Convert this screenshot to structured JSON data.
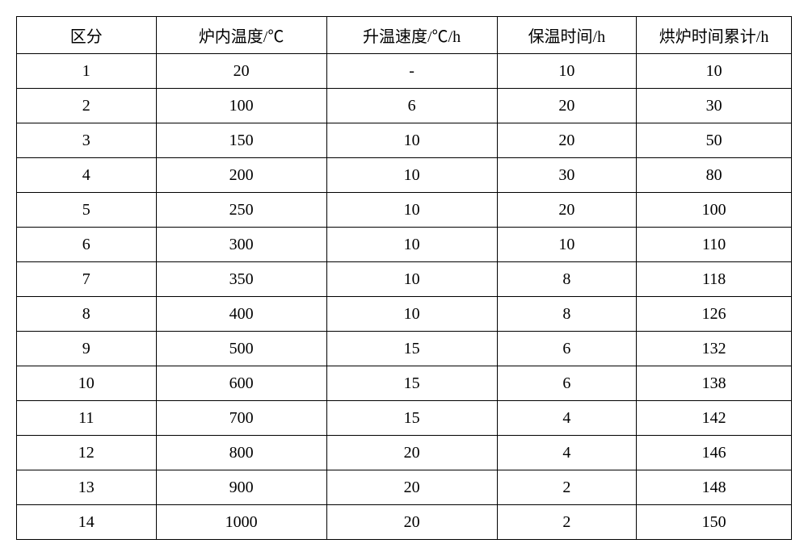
{
  "table": {
    "columns": [
      "区分",
      "炉内温度/℃",
      "升温速度/℃/h",
      "保温时间/h",
      "烘炉时间累计/h"
    ],
    "column_widths": [
      "18%",
      "22%",
      "22%",
      "18%",
      "20%"
    ],
    "rows": [
      [
        "1",
        "20",
        "-",
        "10",
        "10"
      ],
      [
        "2",
        "100",
        "6",
        "20",
        "30"
      ],
      [
        "3",
        "150",
        "10",
        "20",
        "50"
      ],
      [
        "4",
        "200",
        "10",
        "30",
        "80"
      ],
      [
        "5",
        "250",
        "10",
        "20",
        "100"
      ],
      [
        "6",
        "300",
        "10",
        "10",
        "110"
      ],
      [
        "7",
        "350",
        "10",
        "8",
        "118"
      ],
      [
        "8",
        "400",
        "10",
        "8",
        "126"
      ],
      [
        "9",
        "500",
        "15",
        "6",
        "132"
      ],
      [
        "10",
        "600",
        "15",
        "6",
        "138"
      ],
      [
        "11",
        "700",
        "15",
        "4",
        "142"
      ],
      [
        "12",
        "800",
        "20",
        "4",
        "146"
      ],
      [
        "13",
        "900",
        "20",
        "2",
        "148"
      ],
      [
        "14",
        "1000",
        "20",
        "2",
        "150"
      ]
    ],
    "border_color": "#000000",
    "background_color": "#ffffff",
    "text_color": "#000000",
    "font_size": 20,
    "cell_align": "center"
  }
}
